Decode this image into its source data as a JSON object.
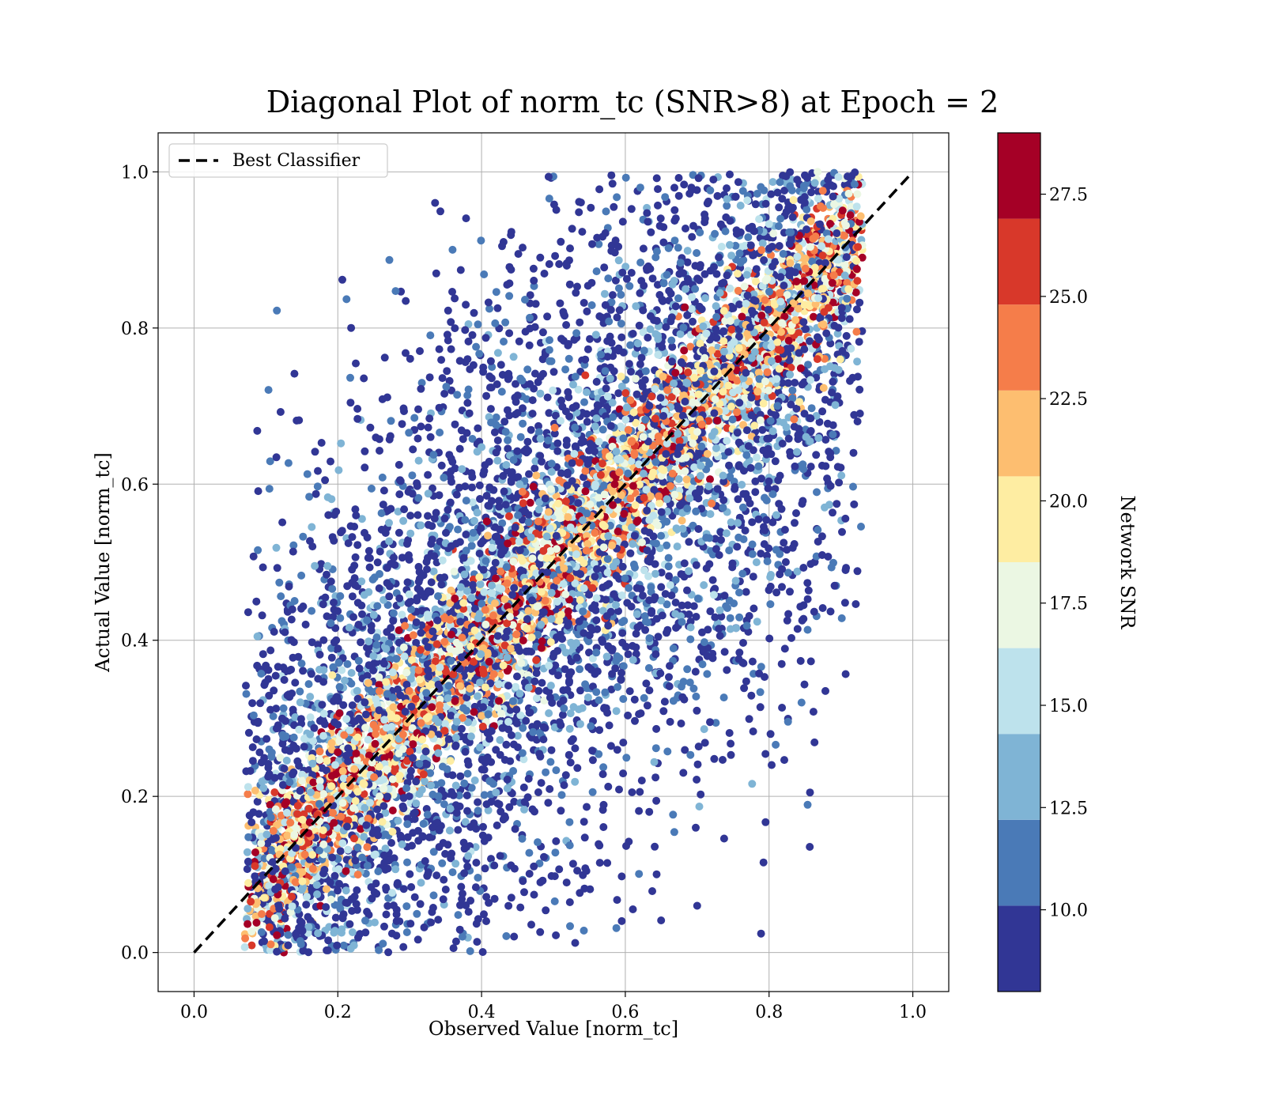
{
  "chart_data": {
    "type": "scatter",
    "title": "Diagonal Plot of norm_tc (SNR>8) at Epoch = 2",
    "xlabel": "Observed Value [norm_tc]",
    "ylabel": "Actual Value [norm_tc]",
    "xlim": [
      -0.05,
      1.05
    ],
    "ylim": [
      -0.05,
      1.05
    ],
    "xticks": [
      "0.0",
      "0.2",
      "0.4",
      "0.6",
      "0.8",
      "1.0"
    ],
    "yticks": [
      "0.0",
      "0.2",
      "0.4",
      "0.6",
      "0.8",
      "1.0"
    ],
    "grid": true,
    "legend": {
      "placement": "top-left",
      "entries": [
        "Best Classifier"
      ]
    },
    "reference_line": {
      "name": "Best Classifier",
      "x": [
        0.0,
        1.0
      ],
      "y": [
        0.0,
        1.0
      ],
      "style": "dashed",
      "color": "#000000"
    },
    "scatter": {
      "description_of_distribution": "dense cloud of several thousand points spread around the diagonal; observed value bounded roughly between 0.08 and 0.92; actual value between 0.0 and 1.0",
      "approx_point_count": 12000,
      "x_range": [
        0.07,
        0.93
      ],
      "y_range": [
        0.0,
        1.0
      ],
      "color_by": "Network SNR"
    },
    "colorbar": {
      "label": "Network SNR",
      "range": [
        8.0,
        29.0
      ],
      "ticks": [
        "10.0",
        "12.5",
        "15.0",
        "17.5",
        "20.0",
        "22.5",
        "25.0",
        "27.5"
      ],
      "tick_values": [
        10.0,
        12.5,
        15.0,
        17.5,
        20.0,
        22.5,
        25.0,
        27.5
      ],
      "bins": [
        {
          "from": 8.0,
          "to": 10.1,
          "color": "#313695"
        },
        {
          "from": 10.1,
          "to": 12.2,
          "color": "#4a7ab7"
        },
        {
          "from": 12.2,
          "to": 14.3,
          "color": "#7fb4d5"
        },
        {
          "from": 14.3,
          "to": 16.4,
          "color": "#bde2ec"
        },
        {
          "from": 16.4,
          "to": 18.5,
          "color": "#ebf7e3"
        },
        {
          "from": 18.5,
          "to": 20.6,
          "color": "#feeda2"
        },
        {
          "from": 20.6,
          "to": 22.7,
          "color": "#fdbe70"
        },
        {
          "from": 22.7,
          "to": 24.8,
          "color": "#f57d4a"
        },
        {
          "from": 24.8,
          "to": 26.9,
          "color": "#d8382a"
        },
        {
          "from": 26.9,
          "to": 29.0,
          "color": "#a50026"
        }
      ]
    }
  }
}
